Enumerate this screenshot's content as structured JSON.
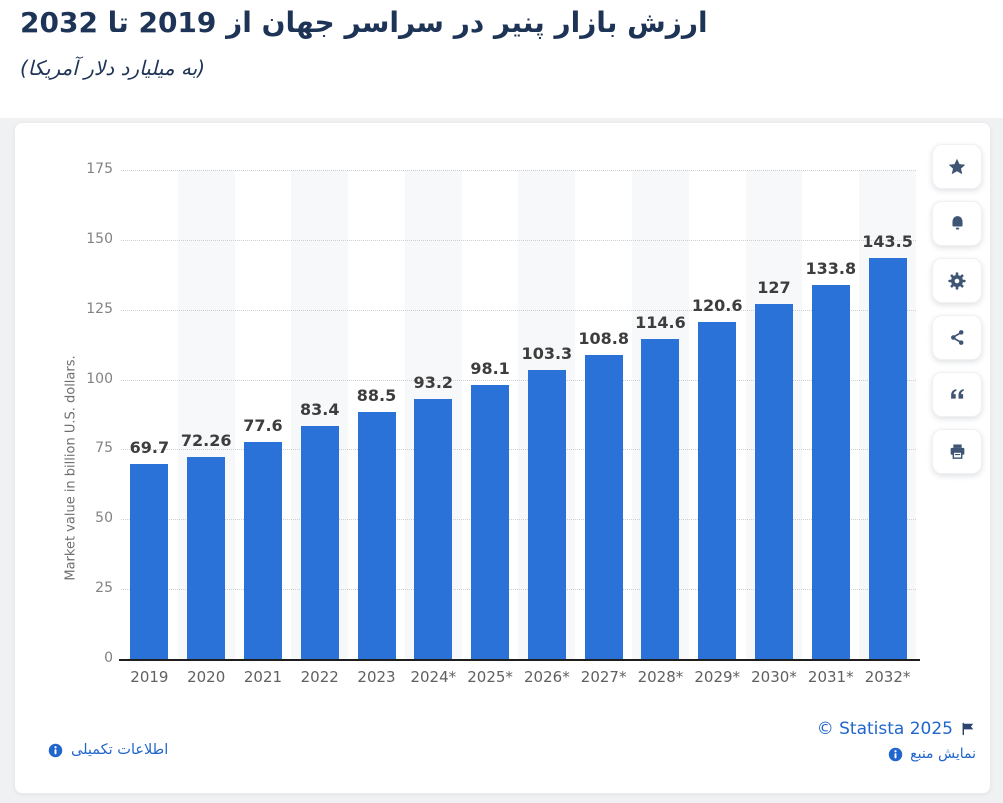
{
  "header": {
    "title": "ارزش بازار پنیر در سراسر جهان از 2019 تا 2032",
    "subtitle": "(به میلیارد دلار آمریکا)"
  },
  "chart_data": {
    "type": "bar",
    "title": "ارزش بازار پنیر در سراسر جهان از 2019 تا 2032",
    "subtitle": "(به میلیارد دلار آمریکا)",
    "categories": [
      "2019",
      "2020",
      "2021",
      "2022",
      "2023",
      "2024*",
      "2025*",
      "2026*",
      "2027*",
      "2028*",
      "2029*",
      "2030*",
      "2031*",
      "2032*"
    ],
    "values": [
      69.7,
      72.26,
      77.6,
      83.4,
      88.5,
      93.2,
      98.1,
      103.3,
      108.8,
      114.6,
      120.6,
      127,
      133.8,
      143.5
    ],
    "labels": [
      "69.7",
      "72.26",
      "77.6",
      "83.4",
      "88.5",
      "93.2",
      "98.1",
      "103.3",
      "108.8",
      "114.6",
      "120.6",
      "127",
      "133.8",
      "143.5"
    ],
    "xlabel": "",
    "ylabel": "Market value in billion U.S. dollars.",
    "ylim": [
      0,
      175
    ],
    "yticks": [
      0,
      25,
      50,
      75,
      100,
      125,
      150,
      175
    ],
    "grid": "horizontal-dotted",
    "plot_stripes": "alternating-column",
    "legend": "none",
    "bar_color": "#2b72d8"
  },
  "toolbar": {
    "buttons": [
      {
        "name": "favorite",
        "icon": "star-icon"
      },
      {
        "name": "alert",
        "icon": "bell-icon"
      },
      {
        "name": "settings",
        "icon": "gear-icon"
      },
      {
        "name": "share",
        "icon": "share-icon"
      },
      {
        "name": "cite",
        "icon": "quote-icon"
      },
      {
        "name": "print",
        "icon": "printer-icon"
      }
    ]
  },
  "footer": {
    "copyright": "© Statista 2025",
    "show_source": "نمایش منبع",
    "additional_info": "اطلاعات تکمیلی"
  },
  "colors": {
    "bar": "#2b72d8",
    "title": "#1d3456",
    "link": "#2166cd",
    "icon": "#3f5574",
    "stripe": "#f7f8f9",
    "canvas": "#f0f1f3"
  }
}
